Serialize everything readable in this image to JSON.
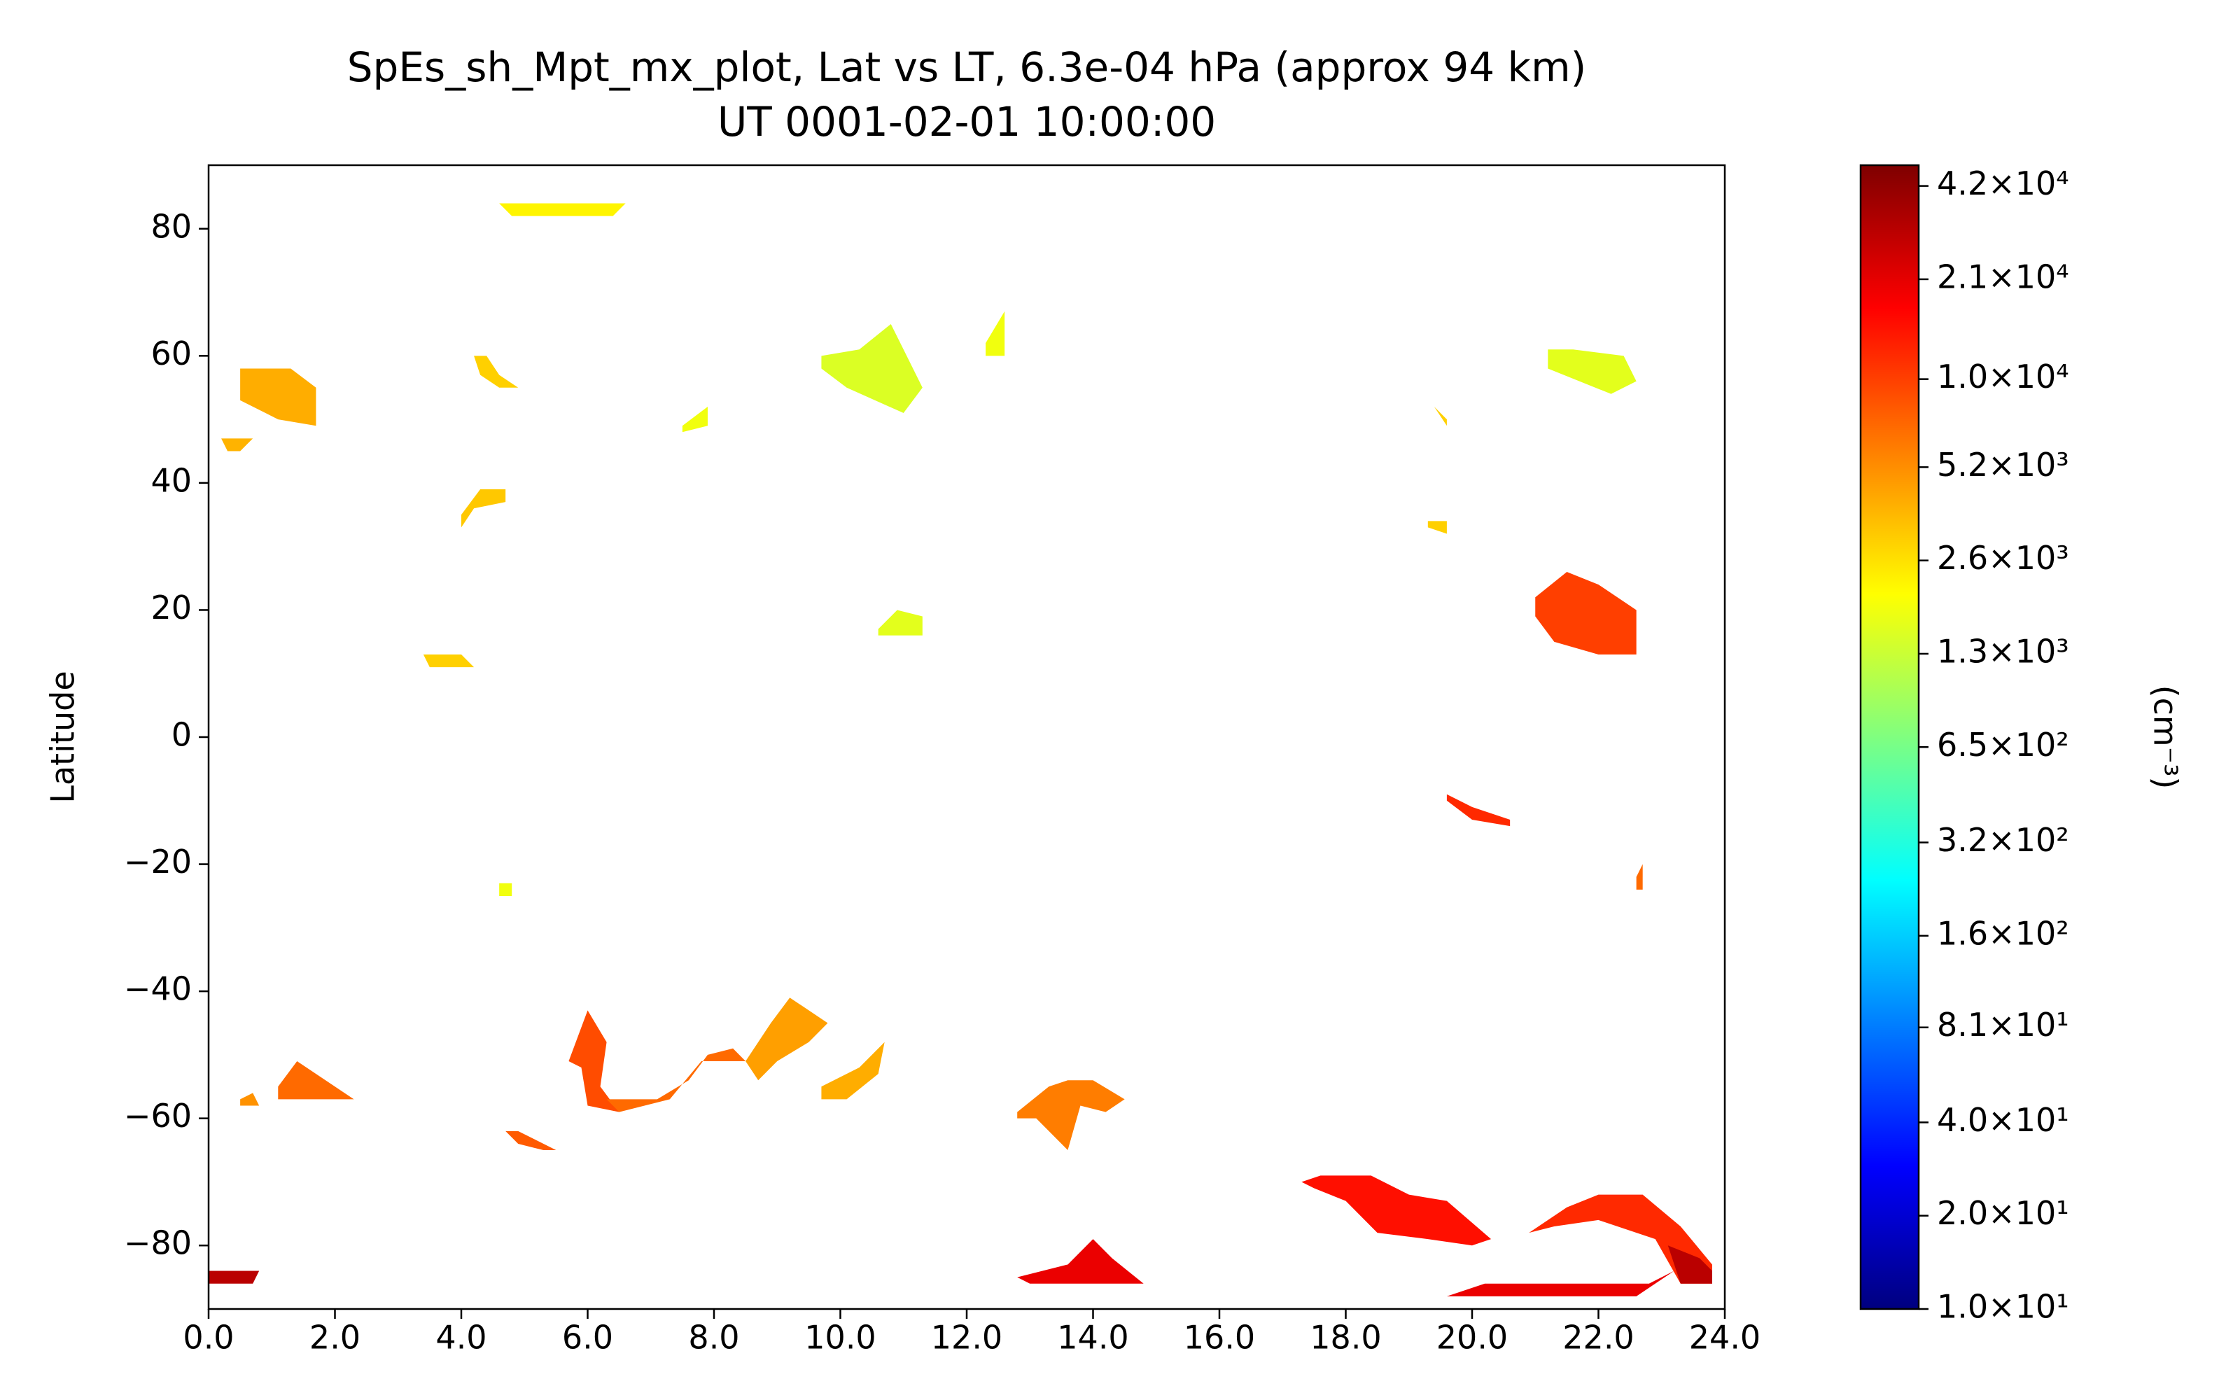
{
  "chart_data": {
    "type": "contour",
    "title": "SpEs_sh_Mpt_mx_plot, Lat vs LT, 6.3e-04 hPa (approx 94 km)",
    "subtitle": "UT 0001-02-01 10:00:00",
    "y_label": "Latitude",
    "colorbar_label": "(cm⁻³)",
    "colormap": "jet",
    "color_scale": "log",
    "xlim": [
      0,
      24
    ],
    "xticks": [
      {
        "value": 0,
        "label": "0.0"
      },
      {
        "value": 2,
        "label": "2.0"
      },
      {
        "value": 4,
        "label": "4.0"
      },
      {
        "value": 6,
        "label": "6.0"
      },
      {
        "value": 8,
        "label": "8.0"
      },
      {
        "value": 10,
        "label": "10.0"
      },
      {
        "value": 12,
        "label": "12.0"
      },
      {
        "value": 14,
        "label": "14.0"
      },
      {
        "value": 16,
        "label": "16.0"
      },
      {
        "value": 18,
        "label": "18.0"
      },
      {
        "value": 20,
        "label": "20.0"
      },
      {
        "value": 22,
        "label": "22.0"
      },
      {
        "value": 24,
        "label": "24.0"
      }
    ],
    "ylim": [
      -90,
      90
    ],
    "yticks": [
      {
        "value": -80,
        "label": "−80"
      },
      {
        "value": -60,
        "label": "−60"
      },
      {
        "value": -40,
        "label": "−40"
      },
      {
        "value": -20,
        "label": "−20"
      },
      0,
      20,
      40,
      60,
      80
    ],
    "clim": [
      10,
      49000
    ],
    "cticks": [
      {
        "value": 10,
        "label": "1.0×10¹"
      },
      {
        "value": 20,
        "label": "2.0×10¹"
      },
      {
        "value": 40,
        "label": "4.0×10¹"
      },
      {
        "value": 81,
        "label": "8.1×10¹"
      },
      {
        "value": 160,
        "label": "1.6×10²"
      },
      {
        "value": 320,
        "label": "3.2×10²"
      },
      {
        "value": 650,
        "label": "6.5×10²"
      },
      {
        "value": 1300,
        "label": "1.3×10³"
      },
      {
        "value": 2600,
        "label": "2.6×10³"
      },
      {
        "value": 5200,
        "label": "5.2×10³"
      },
      {
        "value": 10000,
        "label": "1.0×10⁴"
      },
      {
        "value": 21000,
        "label": "2.1×10⁴"
      },
      {
        "value": 42000,
        "label": "4.2×10⁴"
      }
    ],
    "regions": [
      {
        "value": 2200,
        "x": [
          4.6,
          6.6,
          6.4,
          4.8
        ],
        "y": [
          84,
          84,
          82,
          82
        ]
      },
      {
        "value": 4000,
        "x": [
          0.5,
          1.3,
          1.7,
          1.7,
          1.1,
          0.5
        ],
        "y": [
          58,
          58,
          55,
          49,
          50,
          53
        ]
      },
      {
        "value": 3800,
        "x": [
          0.2,
          0.7,
          0.5,
          0.3
        ],
        "y": [
          47,
          47,
          45,
          45
        ]
      },
      {
        "value": 3000,
        "x": [
          4.2,
          4.4,
          4.6,
          4.9,
          4.6,
          4.3
        ],
        "y": [
          60,
          60,
          57,
          55,
          55,
          57
        ]
      },
      {
        "value": 1800,
        "x": [
          7.5,
          7.9,
          7.9,
          7.5
        ],
        "y": [
          49,
          52,
          49,
          48
        ]
      },
      {
        "value": 3200,
        "x": [
          4.0,
          4.3,
          4.7,
          4.7,
          4.2,
          4.0
        ],
        "y": [
          35,
          39,
          39,
          37,
          36,
          33
        ]
      },
      {
        "value": 1500,
        "x": [
          9.7,
          10.3,
          10.8,
          11.0,
          11.3,
          11.0,
          10.1,
          9.7
        ],
        "y": [
          60,
          61,
          65,
          61,
          55,
          51,
          55,
          58
        ]
      },
      {
        "value": 1800,
        "x": [
          12.3,
          12.6,
          12.6,
          12.3
        ],
        "y": [
          62,
          67,
          60,
          60
        ]
      },
      {
        "value": 1600,
        "x": [
          10.6,
          10.9,
          11.3,
          11.3,
          10.6
        ],
        "y": [
          17,
          20,
          19,
          16,
          16
        ]
      },
      {
        "value": 3000,
        "x": [
          3.4,
          4.0,
          4.2,
          3.5
        ],
        "y": [
          13,
          13,
          11,
          11
        ]
      },
      {
        "value": 1600,
        "x": [
          21.2,
          21.6,
          22.4,
          22.6,
          22.2,
          21.2
        ],
        "y": [
          61,
          61,
          60,
          56,
          54,
          58
        ]
      },
      {
        "value": 10000,
        "x": [
          21.0,
          21.5,
          22.0,
          22.6,
          22.6,
          22.0,
          21.3,
          21.0
        ],
        "y": [
          22,
          26,
          24,
          20,
          13,
          13,
          15,
          19
        ]
      },
      {
        "value": 3000,
        "x": [
          19.3,
          19.6,
          19.6,
          19.3
        ],
        "y": [
          34,
          34,
          32,
          33
        ]
      },
      {
        "value": 3000,
        "x": [
          19.4,
          19.6,
          19.6
        ],
        "y": [
          52,
          50,
          49
        ]
      },
      {
        "value": 12000,
        "x": [
          19.6,
          20.0,
          20.6,
          20.6,
          20.0,
          19.6
        ],
        "y": [
          -9,
          -11,
          -13,
          -14,
          -13,
          -10
        ]
      },
      {
        "value": 7000,
        "x": [
          22.6,
          22.7,
          22.7,
          22.6
        ],
        "y": [
          -22,
          -20,
          -24,
          -24
        ]
      },
      {
        "value": 1800,
        "x": [
          4.6,
          4.8,
          4.8,
          4.6
        ],
        "y": [
          -23,
          -23,
          -25,
          -25
        ]
      },
      {
        "value": 7000,
        "x": [
          1.1,
          1.4,
          2.0,
          2.3,
          1.6,
          1.1
        ],
        "y": [
          -55,
          -51,
          -55,
          -57,
          -57,
          -57
        ]
      },
      {
        "value": 5000,
        "x": [
          0.5,
          0.7,
          0.8,
          0.5
        ],
        "y": [
          -57,
          -56,
          -58,
          -58
        ]
      },
      {
        "value": 9000,
        "x": [
          5.7,
          6.0,
          6.3,
          6.2,
          6.5,
          6.0,
          5.9
        ],
        "y": [
          -51,
          -43,
          -48,
          -55,
          -59,
          -58,
          -52
        ]
      },
      {
        "value": 7000,
        "x": [
          6.3,
          7.1,
          7.6,
          7.9,
          8.3,
          8.5,
          7.8,
          7.3,
          6.9,
          6.5
        ],
        "y": [
          -57,
          -57,
          -54,
          -50,
          -49,
          -51,
          -51,
          -57,
          -58,
          -59
        ]
      },
      {
        "value": 4500,
        "x": [
          8.5,
          8.9,
          9.2,
          9.8,
          9.5,
          9.0,
          8.7
        ],
        "y": [
          -51,
          -45,
          -41,
          -45,
          -48,
          -51,
          -54
        ]
      },
      {
        "value": 4000,
        "x": [
          9.7,
          10.3,
          10.7,
          10.6,
          10.1,
          9.7
        ],
        "y": [
          -55,
          -52,
          -48,
          -53,
          -57,
          -57
        ]
      },
      {
        "value": 8000,
        "x": [
          4.7,
          4.9,
          5.5,
          5.3,
          4.9
        ],
        "y": [
          -62,
          -62,
          -65,
          -65,
          -64
        ]
      },
      {
        "value": 6000,
        "x": [
          12.8,
          13.3,
          13.6,
          14.0,
          14.5,
          14.2,
          13.8,
          13.6,
          13.1,
          12.8
        ],
        "y": [
          -59,
          -55,
          -54,
          -54,
          -57,
          -59,
          -58,
          -65,
          -60,
          -60
        ]
      },
      {
        "value": 30000,
        "x": [
          0.0,
          0.8,
          0.7,
          0.0
        ],
        "y": [
          -84,
          -84,
          -86,
          -86
        ]
      },
      {
        "value": 20000,
        "x": [
          12.8,
          13.6,
          14.0,
          14.3,
          14.8,
          13.0
        ],
        "y": [
          -85,
          -83,
          -79,
          -82,
          -86,
          -86
        ]
      },
      {
        "value": 15000,
        "x": [
          17.3,
          17.6,
          18.4,
          19.0,
          19.6,
          20.3,
          20.0,
          19.3,
          18.5,
          18.0,
          17.5
        ],
        "y": [
          -70,
          -69,
          -69,
          -72,
          -73,
          -79,
          -80,
          -79,
          -78,
          -73,
          -71
        ]
      },
      {
        "value": 12000,
        "x": [
          20.9,
          21.5,
          22.0,
          22.7,
          23.3,
          23.8,
          23.8,
          23.3,
          22.9,
          22.0,
          21.3,
          20.9
        ],
        "y": [
          -78,
          -74,
          -72,
          -72,
          -77,
          -83,
          -86,
          -86,
          -79,
          -76,
          -77,
          -78
        ]
      },
      {
        "value": 30000,
        "x": [
          23.1,
          23.6,
          23.8,
          23.8,
          23.3
        ],
        "y": [
          -80,
          -82,
          -84,
          -86,
          -86
        ]
      },
      {
        "value": 20000,
        "x": [
          19.6,
          20.2,
          22.8,
          23.2,
          22.6,
          19.6
        ],
        "y": [
          -88,
          -86,
          -86,
          -84,
          -88,
          -88
        ]
      }
    ]
  }
}
